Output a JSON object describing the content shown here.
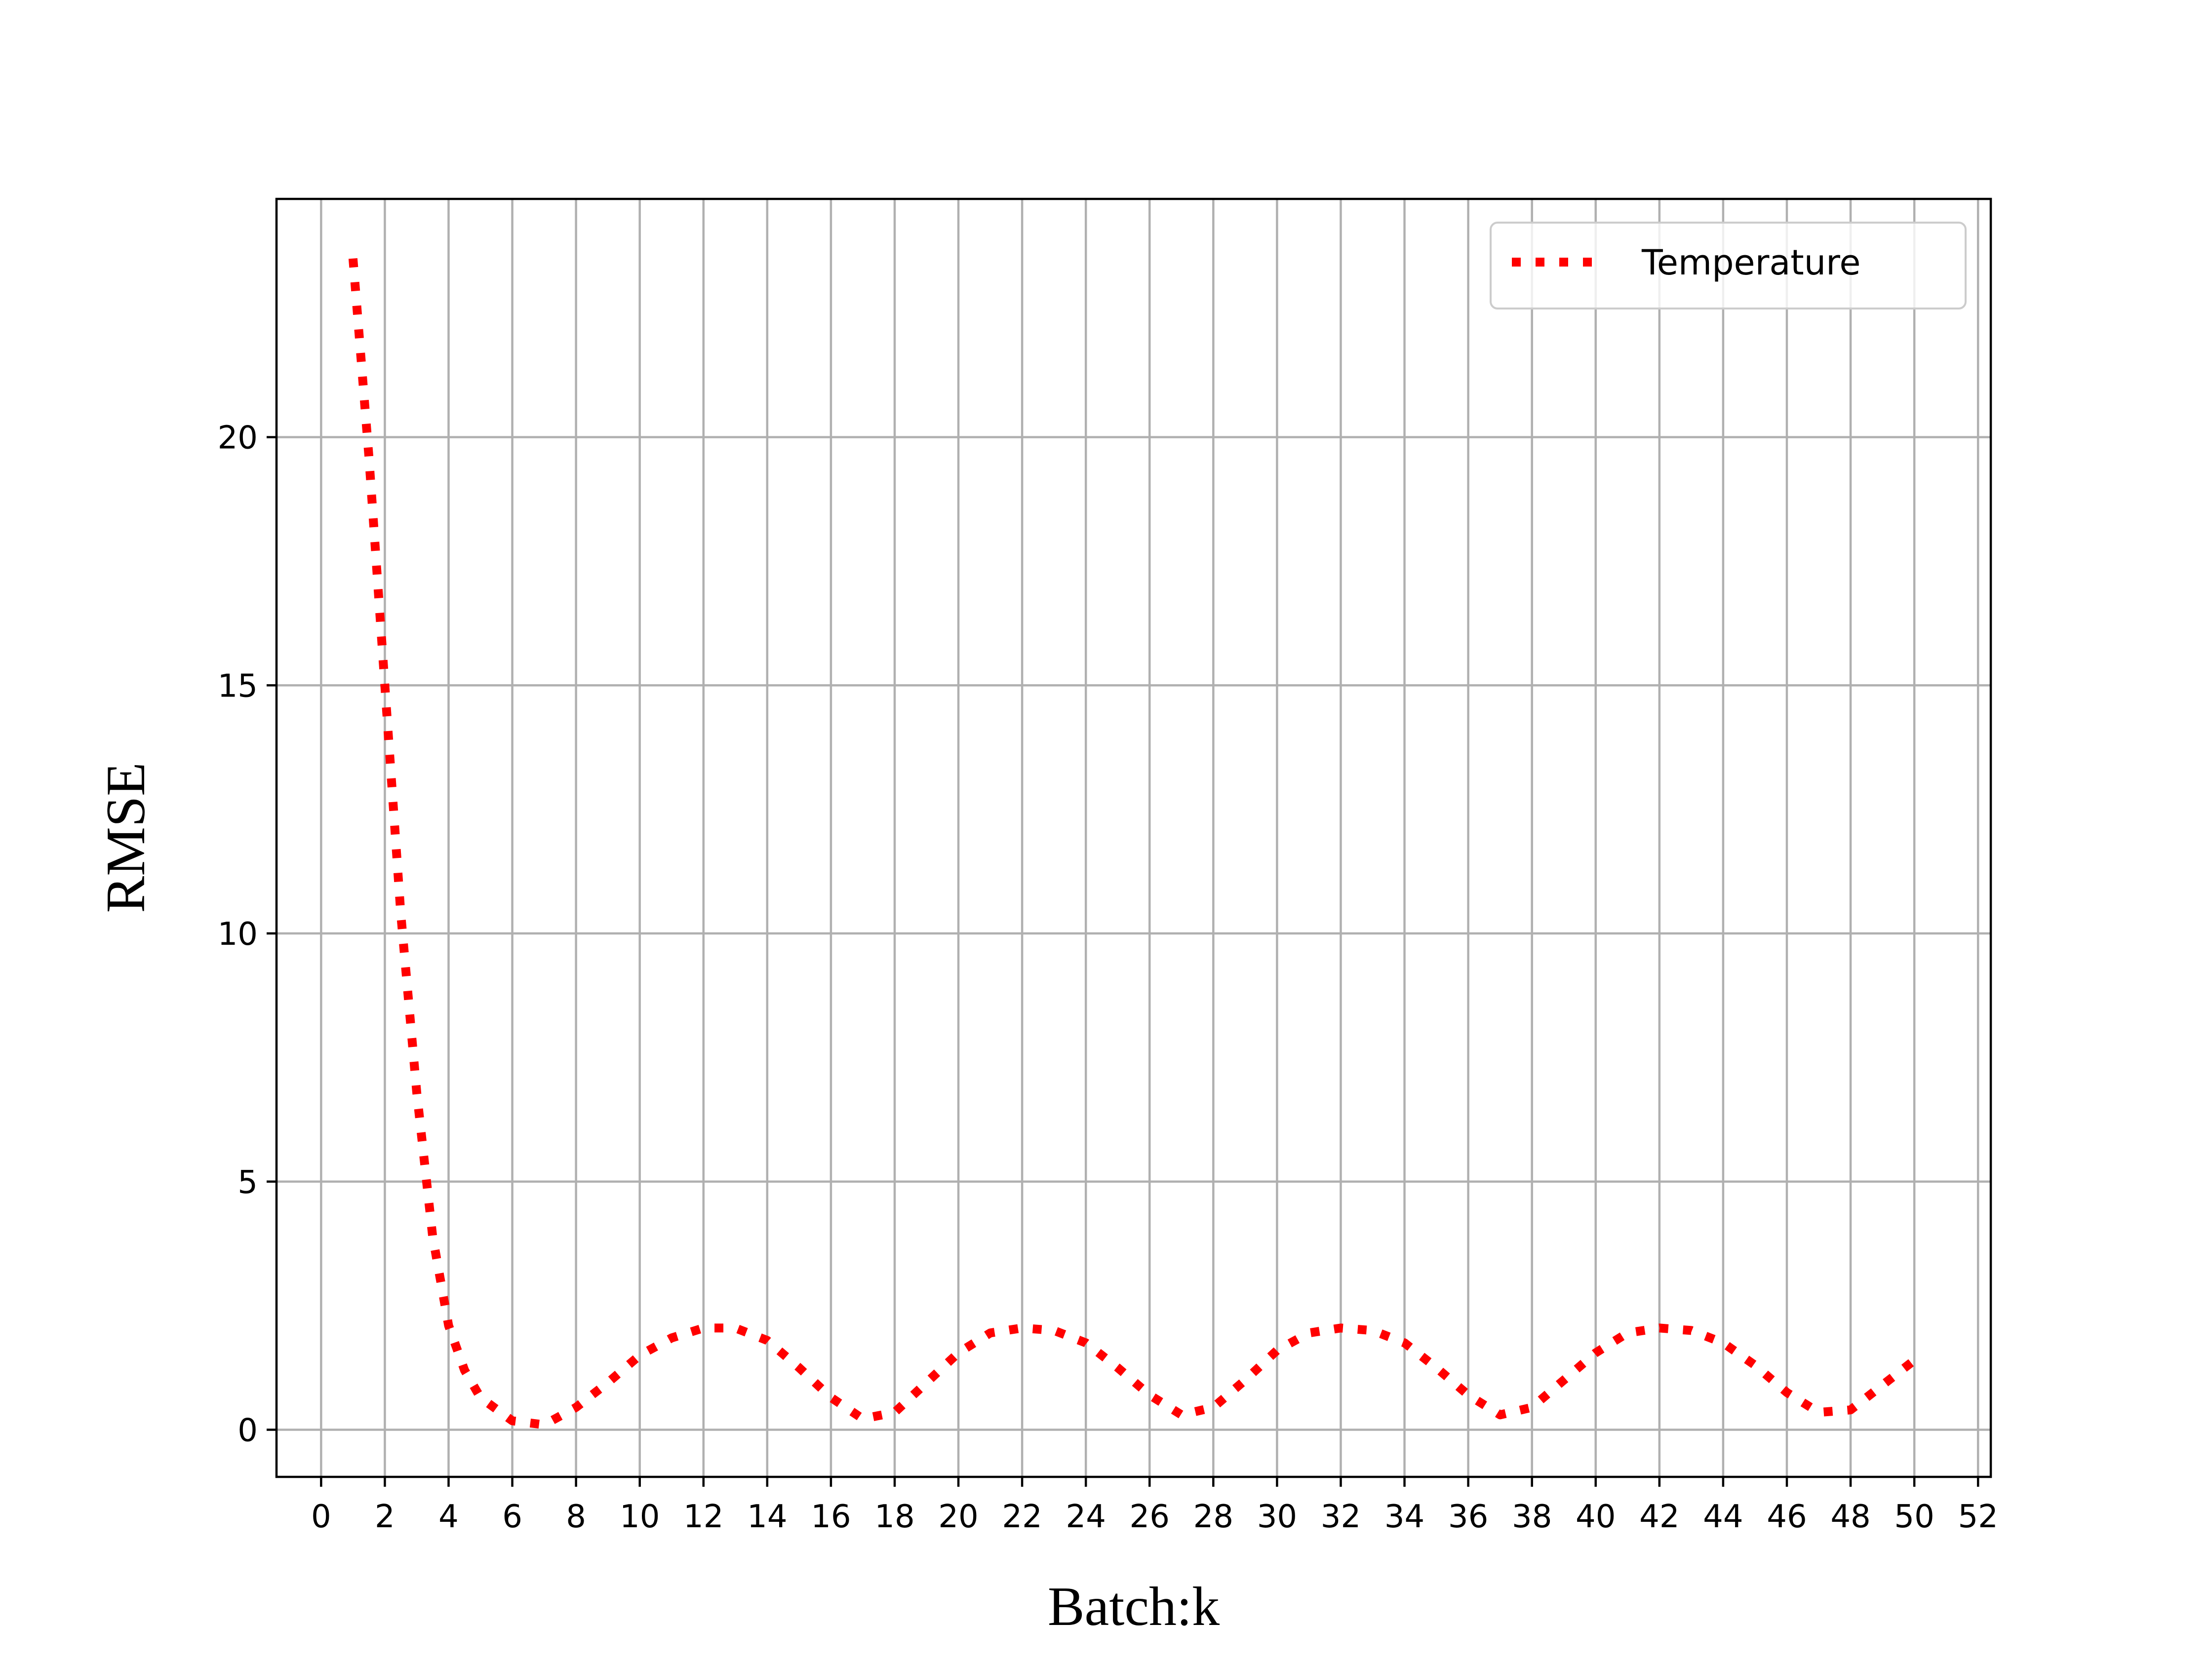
{
  "chart_data": {
    "type": "line",
    "xlabel": "Batch:k",
    "ylabel": "RMSE",
    "xlim": [
      -1.4,
      52.4
    ],
    "ylim": [
      -0.95,
      24.8
    ],
    "x_ticks": [
      0,
      2,
      4,
      6,
      8,
      10,
      12,
      14,
      16,
      18,
      20,
      22,
      24,
      26,
      28,
      30,
      32,
      34,
      36,
      38,
      40,
      42,
      44,
      46,
      48,
      50,
      52
    ],
    "y_ticks": [
      0,
      5,
      10,
      15,
      20
    ],
    "grid": true,
    "legend_position": "top-right",
    "series": [
      {
        "name": "Temperature",
        "color": "#ff0000",
        "line_style": "dotted",
        "x": [
          1,
          1.5,
          2,
          2.5,
          3,
          3.5,
          4,
          4.5,
          5,
          6,
          7,
          8,
          9,
          10,
          11,
          12,
          13,
          14,
          15,
          16,
          17,
          18,
          19,
          20,
          21,
          22,
          23,
          24,
          25,
          26,
          27,
          28,
          29,
          30,
          31,
          32,
          33,
          34,
          35,
          36,
          37,
          38,
          39,
          40,
          41,
          42,
          43,
          44,
          45,
          46,
          47,
          48,
          49,
          50
        ],
        "y": [
          23.6,
          19.6,
          15.0,
          10.4,
          6.8,
          3.9,
          2.1,
          1.2,
          0.65,
          0.18,
          0.1,
          0.45,
          0.95,
          1.5,
          1.85,
          2.05,
          2.05,
          1.8,
          1.25,
          0.65,
          0.22,
          0.35,
          0.95,
          1.55,
          1.95,
          2.05,
          2.0,
          1.75,
          1.25,
          0.7,
          0.3,
          0.45,
          1.0,
          1.6,
          1.95,
          2.05,
          2.0,
          1.75,
          1.25,
          0.7,
          0.3,
          0.45,
          1.0,
          1.55,
          1.95,
          2.05,
          2.0,
          1.75,
          1.3,
          0.75,
          0.35,
          0.4,
          0.9,
          1.4
        ]
      }
    ]
  }
}
